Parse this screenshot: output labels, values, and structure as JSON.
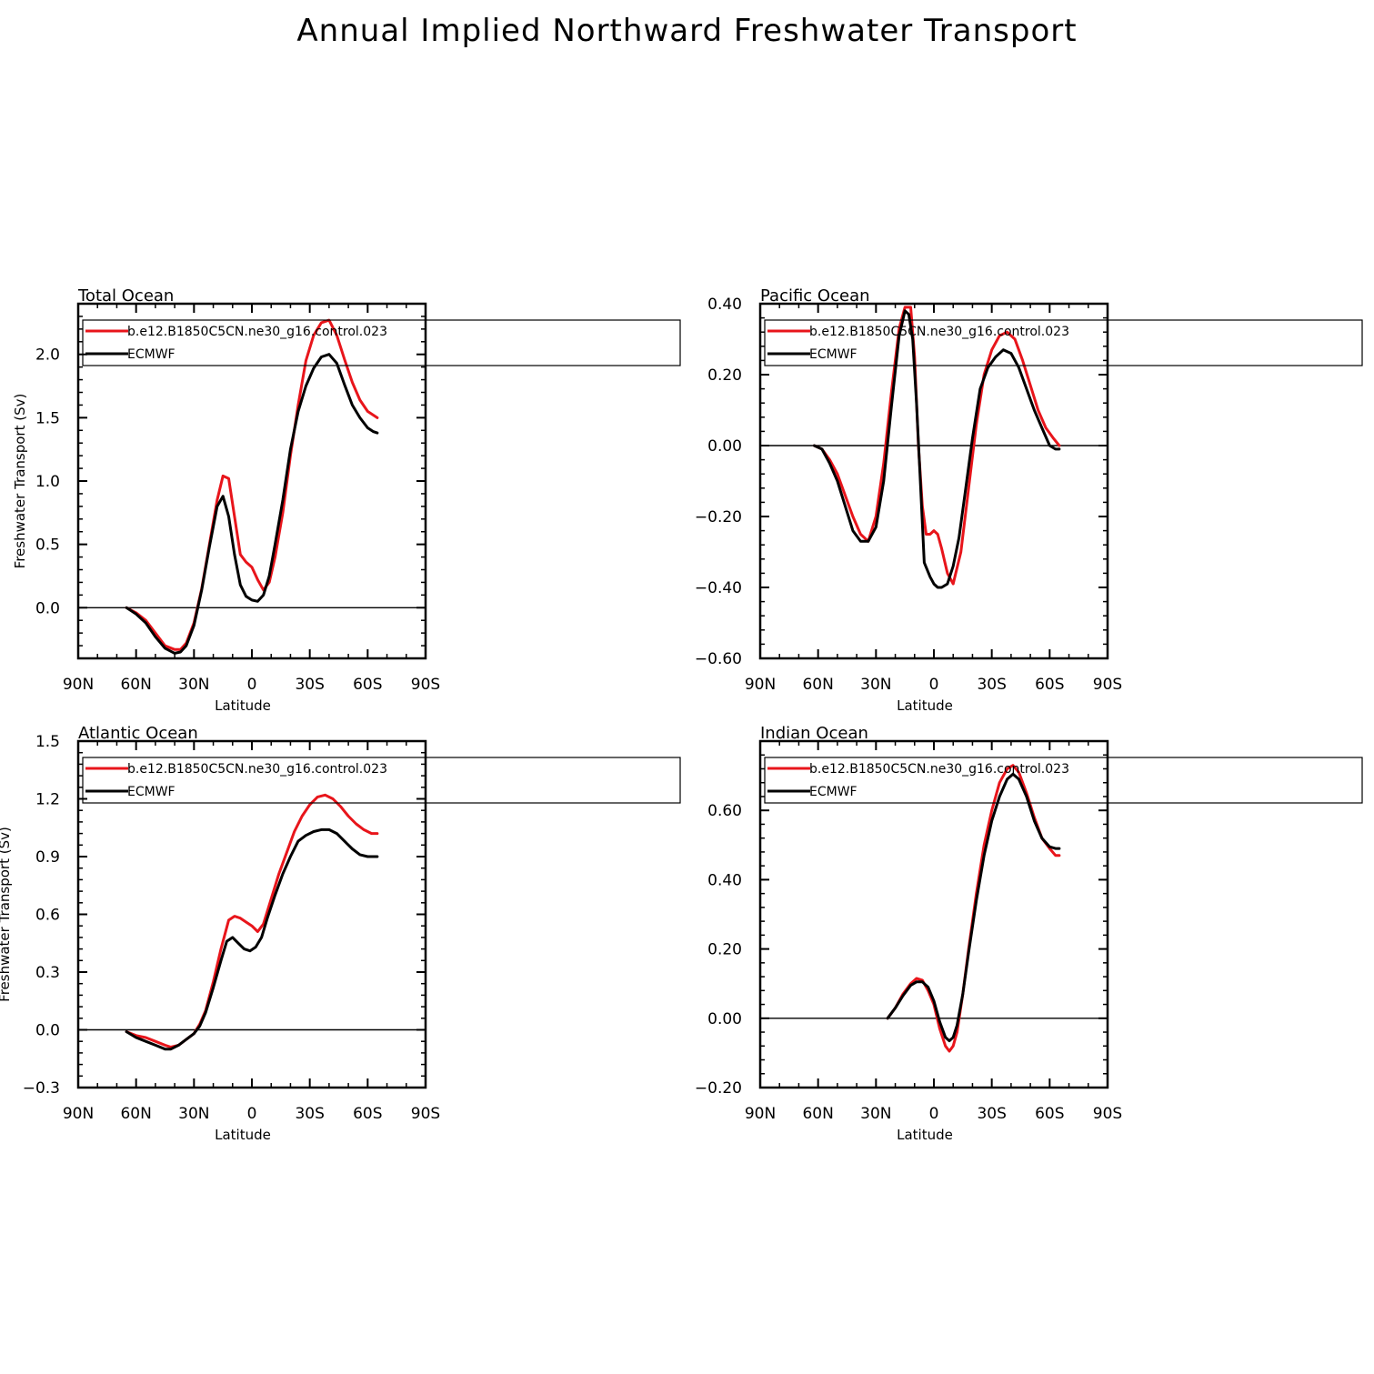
{
  "page": {
    "title": "Annual Implied Northward Freshwater Transport"
  },
  "colors": {
    "model": "#e8151b",
    "obs": "#000000"
  },
  "chart_data": [
    {
      "type": "line",
      "title": "Total Ocean",
      "xlabel": "Latitude",
      "ylabel": "Freshwater Transport (Sv)",
      "xlim": [
        90,
        -90
      ],
      "ylim": [
        -0.4,
        2.4
      ],
      "xticks": [
        90,
        60,
        30,
        0,
        -30,
        -60,
        -90
      ],
      "xtick_labels": [
        "90N",
        "60N",
        "30N",
        "0",
        "30S",
        "60S",
        "90S"
      ],
      "yticks": [
        0.0,
        0.5,
        1.0,
        1.5,
        2.0
      ],
      "ytick_labels": [
        "0.0",
        "0.5",
        "1.0",
        "1.5",
        "2.0"
      ],
      "zero_line": true,
      "legend": {
        "position": "top",
        "entries": [
          "b.e12.B1850C5CN.ne30_g16.control.023",
          "ECMWF"
        ]
      },
      "series": [
        {
          "name": "b.e12.B1850C5CN.ne30_g16.control.023",
          "color": "#e8151b",
          "x": [
            65,
            60,
            55,
            50,
            45,
            40,
            37,
            34,
            30,
            26,
            22,
            18,
            15,
            12,
            9,
            6,
            3,
            0,
            -3,
            -6,
            -9,
            -12,
            -16,
            -20,
            -24,
            -28,
            -32,
            -36,
            -40,
            -44,
            -48,
            -52,
            -56,
            -60,
            -65
          ],
          "y": [
            0.0,
            -0.04,
            -0.1,
            -0.2,
            -0.3,
            -0.33,
            -0.33,
            -0.28,
            -0.12,
            0.15,
            0.5,
            0.85,
            1.04,
            1.02,
            0.72,
            0.42,
            0.36,
            0.32,
            0.22,
            0.14,
            0.2,
            0.4,
            0.75,
            1.2,
            1.6,
            1.95,
            2.15,
            2.25,
            2.27,
            2.15,
            1.96,
            1.78,
            1.64,
            1.55,
            1.5
          ]
        },
        {
          "name": "ECMWF",
          "color": "#000000",
          "x": [
            65,
            60,
            55,
            50,
            45,
            40,
            37,
            34,
            30,
            26,
            22,
            18,
            15,
            12,
            9,
            6,
            3,
            0,
            -3,
            -6,
            -9,
            -12,
            -16,
            -20,
            -24,
            -28,
            -32,
            -36,
            -40,
            -44,
            -48,
            -52,
            -56,
            -60,
            -63,
            -65
          ],
          "y": [
            0.0,
            -0.05,
            -0.12,
            -0.23,
            -0.32,
            -0.36,
            -0.35,
            -0.3,
            -0.14,
            0.14,
            0.48,
            0.8,
            0.88,
            0.72,
            0.42,
            0.18,
            0.09,
            0.06,
            0.05,
            0.1,
            0.25,
            0.5,
            0.85,
            1.25,
            1.55,
            1.75,
            1.89,
            1.98,
            2.0,
            1.93,
            1.76,
            1.6,
            1.5,
            1.42,
            1.39,
            1.38
          ]
        }
      ]
    },
    {
      "type": "line",
      "title": "Pacific Ocean",
      "xlabel": "Latitude",
      "ylabel": "",
      "xlim": [
        90,
        -90
      ],
      "ylim": [
        -0.6,
        0.4
      ],
      "xticks": [
        90,
        60,
        30,
        0,
        -30,
        -60,
        -90
      ],
      "xtick_labels": [
        "90N",
        "60N",
        "30N",
        "0",
        "30S",
        "60S",
        "90S"
      ],
      "yticks": [
        -0.6,
        -0.4,
        -0.2,
        0.0,
        0.2,
        0.4
      ],
      "ytick_labels": [
        "−0.60",
        "−0.40",
        "−0.20",
        "0.00",
        "0.20",
        "0.40"
      ],
      "zero_line": true,
      "legend": {
        "position": "top",
        "entries": [
          "b.e12.B1850C5CN.ne30_g16.control.023",
          "ECMWF"
        ]
      },
      "series": [
        {
          "name": "b.e12.B1850C5CN.ne30_g16.control.023",
          "color": "#e8151b",
          "x": [
            62,
            58,
            54,
            50,
            46,
            42,
            38,
            34,
            30,
            26,
            22,
            18,
            15,
            12,
            10,
            8,
            6,
            4,
            2,
            0,
            -2,
            -4,
            -7,
            -10,
            -14,
            -18,
            -22,
            -26,
            -30,
            -34,
            -38,
            -42,
            -46,
            -50,
            -54,
            -58,
            -62,
            -65
          ],
          "y": [
            0.0,
            -0.01,
            -0.04,
            -0.08,
            -0.14,
            -0.2,
            -0.25,
            -0.27,
            -0.2,
            -0.05,
            0.15,
            0.33,
            0.39,
            0.39,
            0.25,
            0.0,
            -0.17,
            -0.25,
            -0.25,
            -0.24,
            -0.25,
            -0.29,
            -0.36,
            -0.39,
            -0.3,
            -0.12,
            0.06,
            0.2,
            0.27,
            0.31,
            0.32,
            0.3,
            0.24,
            0.17,
            0.1,
            0.05,
            0.02,
            0.0
          ]
        },
        {
          "name": "ECMWF",
          "color": "#000000",
          "x": [
            62,
            58,
            54,
            50,
            46,
            42,
            38,
            34,
            30,
            26,
            22,
            18,
            15,
            13,
            11,
            9,
            7,
            5,
            2,
            0,
            -2,
            -4,
            -7,
            -10,
            -13,
            -16,
            -20,
            -24,
            -28,
            -32,
            -36,
            -40,
            -44,
            -48,
            -52,
            -56,
            -60,
            -63,
            -65
          ],
          "y": [
            0.0,
            -0.01,
            -0.05,
            -0.1,
            -0.17,
            -0.24,
            -0.27,
            -0.27,
            -0.23,
            -0.1,
            0.11,
            0.31,
            0.38,
            0.37,
            0.3,
            0.12,
            -0.1,
            -0.33,
            -0.37,
            -0.39,
            -0.4,
            -0.4,
            -0.39,
            -0.34,
            -0.26,
            -0.14,
            0.02,
            0.16,
            0.22,
            0.25,
            0.27,
            0.26,
            0.22,
            0.16,
            0.1,
            0.05,
            0.0,
            -0.01,
            -0.01
          ]
        }
      ]
    },
    {
      "type": "line",
      "title": "Atlantic Ocean",
      "xlabel": "Latitude",
      "ylabel": "Freshwater Transport (Sv)",
      "xlim": [
        90,
        -90
      ],
      "ylim": [
        -0.3,
        1.5
      ],
      "xticks": [
        90,
        60,
        30,
        0,
        -30,
        -60,
        -90
      ],
      "xtick_labels": [
        "90N",
        "60N",
        "30N",
        "0",
        "30S",
        "60S",
        "90S"
      ],
      "yticks": [
        -0.3,
        0.0,
        0.3,
        0.6,
        0.9,
        1.2,
        1.5
      ],
      "ytick_labels": [
        "−0.3",
        "0.0",
        "0.3",
        "0.6",
        "0.9",
        "1.2",
        "1.5"
      ],
      "zero_line": true,
      "legend": {
        "position": "top",
        "entries": [
          "b.e12.B1850C5CN.ne30_g16.control.023",
          "ECMWF"
        ]
      },
      "series": [
        {
          "name": "b.e12.B1850C5CN.ne30_g16.control.023",
          "color": "#e8151b",
          "x": [
            65,
            60,
            55,
            50,
            45,
            42,
            38,
            34,
            30,
            27,
            24,
            20,
            16,
            12,
            9,
            6,
            3,
            0,
            -3,
            -6,
            -10,
            -14,
            -18,
            -22,
            -26,
            -30,
            -34,
            -38,
            -42,
            -46,
            -50,
            -54,
            -58,
            -62,
            -65
          ],
          "y": [
            -0.01,
            -0.03,
            -0.04,
            -0.06,
            -0.08,
            -0.09,
            -0.08,
            -0.05,
            -0.02,
            0.03,
            0.1,
            0.25,
            0.42,
            0.57,
            0.59,
            0.58,
            0.56,
            0.54,
            0.51,
            0.55,
            0.68,
            0.81,
            0.92,
            1.03,
            1.11,
            1.17,
            1.21,
            1.22,
            1.2,
            1.16,
            1.11,
            1.07,
            1.04,
            1.02,
            1.02
          ]
        },
        {
          "name": "ECMWF",
          "color": "#000000",
          "x": [
            65,
            60,
            55,
            50,
            45,
            42,
            38,
            34,
            30,
            27,
            24,
            20,
            16,
            13,
            10,
            7,
            4,
            1,
            -2,
            -5,
            -8,
            -12,
            -16,
            -20,
            -24,
            -28,
            -32,
            -36,
            -40,
            -44,
            -48,
            -52,
            -56,
            -60,
            -65
          ],
          "y": [
            -0.01,
            -0.04,
            -0.06,
            -0.08,
            -0.1,
            -0.1,
            -0.08,
            -0.05,
            -0.02,
            0.02,
            0.09,
            0.22,
            0.36,
            0.46,
            0.48,
            0.45,
            0.42,
            0.41,
            0.43,
            0.48,
            0.58,
            0.7,
            0.81,
            0.9,
            0.98,
            1.01,
            1.03,
            1.04,
            1.04,
            1.02,
            0.98,
            0.94,
            0.91,
            0.9,
            0.9
          ]
        }
      ]
    },
    {
      "type": "line",
      "title": "Indian Ocean",
      "xlabel": "Latitude",
      "ylabel": "",
      "xlim": [
        90,
        -90
      ],
      "ylim": [
        -0.2,
        0.8
      ],
      "xticks": [
        90,
        60,
        30,
        0,
        -30,
        -60,
        -90
      ],
      "xtick_labels": [
        "90N",
        "60N",
        "30N",
        "0",
        "30S",
        "60S",
        "90S"
      ],
      "yticks": [
        -0.2,
        0.0,
        0.2,
        0.4,
        0.6
      ],
      "ytick_labels": [
        "−0.20",
        "0.00",
        "0.20",
        "0.40",
        "0.60"
      ],
      "zero_line": true,
      "legend": {
        "position": "top",
        "entries": [
          "b.e12.B1850C5CN.ne30_g16.control.023",
          "ECMWF"
        ]
      },
      "series": [
        {
          "name": "b.e12.B1850C5CN.ne30_g16.control.023",
          "color": "#e8151b",
          "x": [
            24,
            20,
            16,
            12,
            9,
            6,
            3,
            0,
            -3,
            -6,
            -8,
            -10,
            -12,
            -15,
            -18,
            -22,
            -26,
            -30,
            -34,
            -38,
            -41,
            -44,
            -48,
            -52,
            -56,
            -60,
            -63,
            -65
          ],
          "y": [
            0.0,
            0.03,
            0.07,
            0.1,
            0.115,
            0.11,
            0.08,
            0.04,
            -0.03,
            -0.08,
            -0.095,
            -0.08,
            -0.04,
            0.07,
            0.2,
            0.36,
            0.5,
            0.6,
            0.68,
            0.72,
            0.73,
            0.71,
            0.65,
            0.58,
            0.52,
            0.49,
            0.47,
            0.47
          ]
        },
        {
          "name": "ECMWF",
          "color": "#000000",
          "x": [
            24,
            20,
            16,
            12,
            9,
            6,
            3,
            0,
            -3,
            -6,
            -8,
            -10,
            -12,
            -15,
            -18,
            -22,
            -26,
            -30,
            -34,
            -38,
            -41,
            -44,
            -48,
            -52,
            -56,
            -60,
            -63,
            -65
          ],
          "y": [
            0.0,
            0.03,
            0.065,
            0.095,
            0.105,
            0.105,
            0.09,
            0.05,
            -0.01,
            -0.055,
            -0.065,
            -0.055,
            -0.02,
            0.07,
            0.19,
            0.34,
            0.47,
            0.57,
            0.64,
            0.69,
            0.705,
            0.69,
            0.64,
            0.57,
            0.52,
            0.495,
            0.49,
            0.49
          ]
        }
      ]
    }
  ]
}
